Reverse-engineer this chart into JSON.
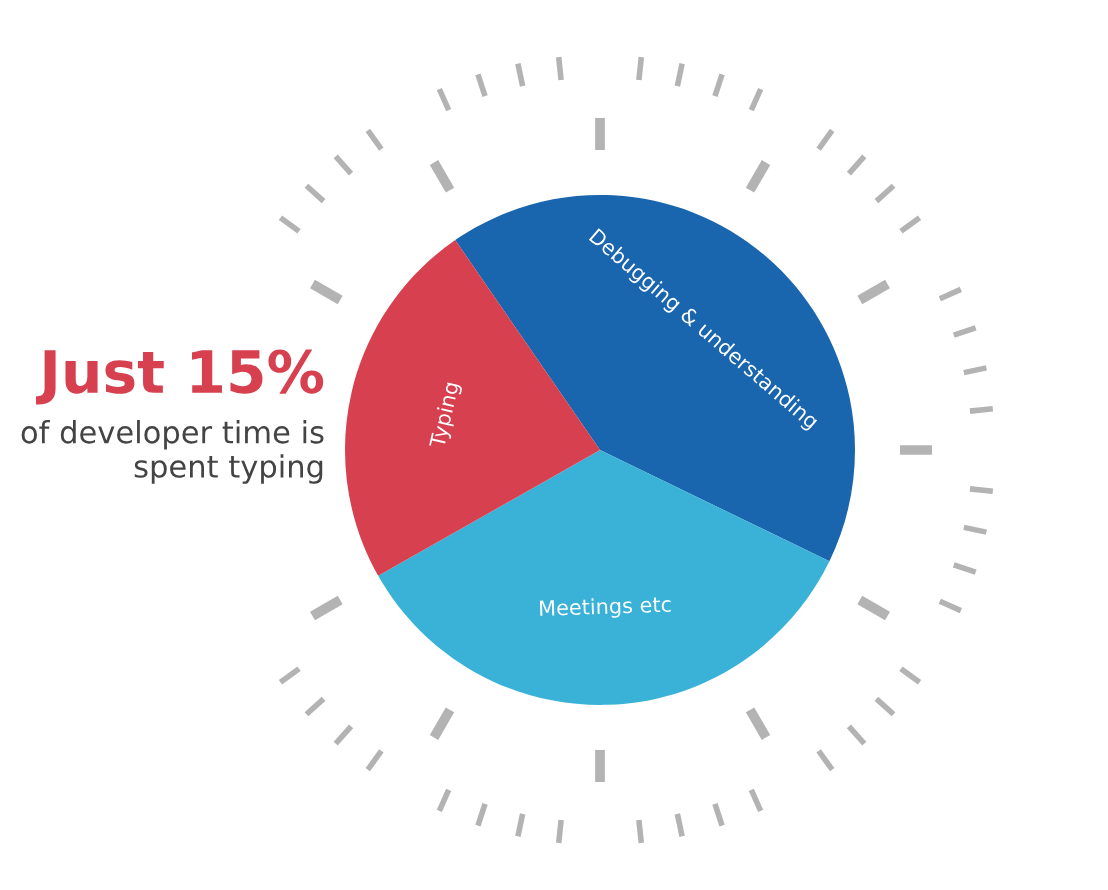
{
  "chart_data": {
    "type": "pie",
    "categories": [
      "Debugging & understanding",
      "Meetings etc",
      "Typing"
    ],
    "values": [
      41.8,
      34.6,
      23.6
    ],
    "colors": [
      "#1966ae",
      "#3ab2d8",
      "#d6404f"
    ],
    "annotations": [
      "Just 15%",
      "of developer time is\nspent typing"
    ],
    "legend": false
  }
}
